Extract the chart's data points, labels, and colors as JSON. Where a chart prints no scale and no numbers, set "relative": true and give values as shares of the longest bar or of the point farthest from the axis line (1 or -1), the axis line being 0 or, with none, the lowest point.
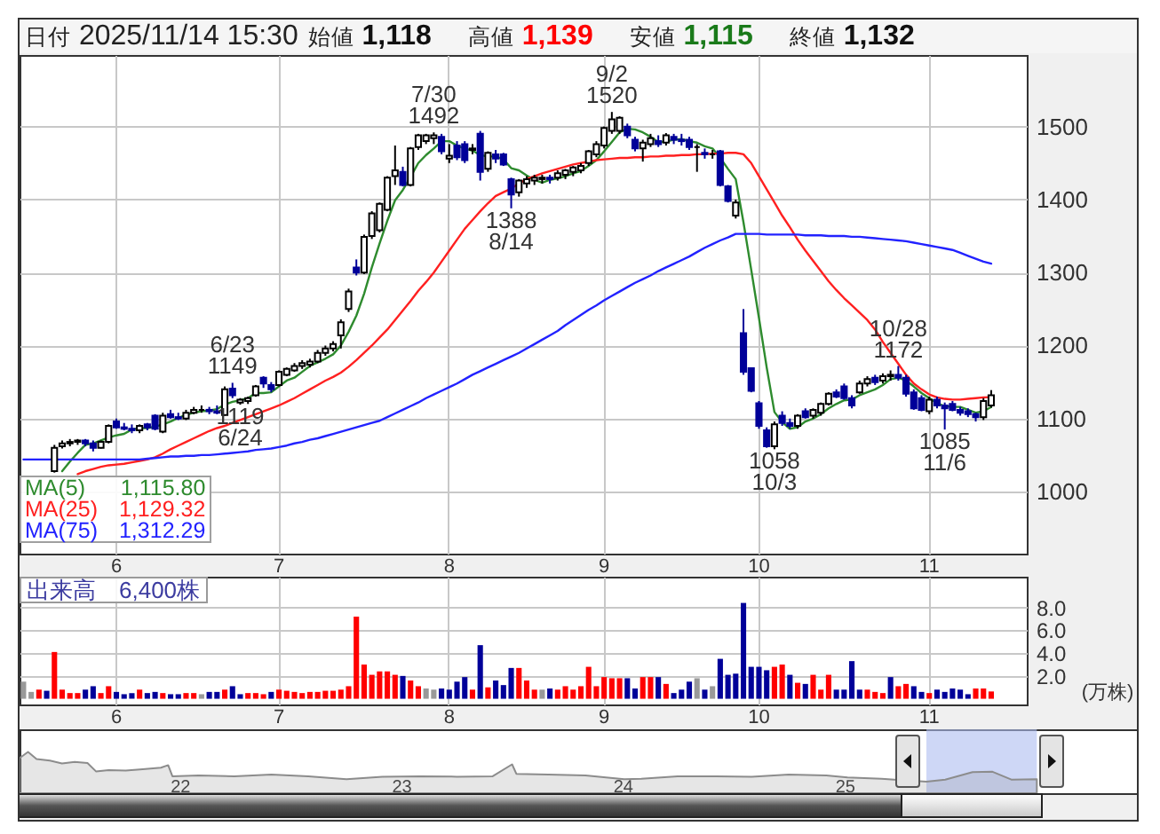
{
  "chart_data": [
    {
      "type": "candlestick",
      "title": "日付 2025/11/14 15:30 始値 1,118 高値 1,139 安値 1,115 終値 1,132",
      "categories": [
        null,
        null,
        null,
        null,
        null,
        null,
        null,
        null,
        null,
        null,
        null,
        null,
        "6",
        null,
        null,
        null,
        null,
        null,
        null,
        null,
        null,
        null,
        null,
        null,
        null,
        null,
        null,
        null,
        null,
        null,
        null,
        null,
        null,
        "7",
        null,
        null,
        null,
        null,
        null,
        null,
        null,
        null,
        null,
        null,
        null,
        null,
        null,
        null,
        null,
        null,
        null,
        null,
        null,
        null,
        null,
        "8",
        null,
        null,
        null,
        null,
        null,
        null,
        null,
        null,
        null,
        null,
        null,
        null,
        null,
        null,
        null,
        null,
        null,
        null,
        null,
        "9",
        null,
        null,
        null,
        null,
        null,
        null,
        null,
        null,
        null,
        null,
        null,
        null,
        null,
        null,
        null,
        null,
        null,
        null,
        null,
        "10",
        null,
        null,
        null,
        null,
        null,
        null,
        null,
        null,
        null,
        null,
        null,
        null,
        null,
        null,
        null,
        null,
        null,
        null,
        null,
        null,
        null,
        "11",
        null,
        null,
        null,
        null,
        null,
        null,
        null,
        null
      ],
      "ohlc": [
        null,
        null,
        null,
        null,
        [
          1028,
          1064,
          1026,
          1060
        ],
        [
          1062,
          1070,
          1059,
          1066
        ],
        [
          1066,
          1072,
          1062,
          1068
        ],
        [
          1068,
          1072,
          1064,
          1070
        ],
        [
          1070,
          1072,
          1062,
          1066
        ],
        [
          1066,
          1070,
          1055,
          1060
        ],
        [
          1060,
          1070,
          1059,
          1068
        ],
        [
          1068,
          1092,
          1066,
          1090
        ],
        [
          1096,
          1100,
          1086,
          1088
        ],
        [
          1088,
          1094,
          1084,
          1086
        ],
        [
          1086,
          1092,
          1080,
          1084
        ],
        [
          1084,
          1092,
          1080,
          1090
        ],
        [
          1092,
          1094,
          1084,
          1088
        ],
        [
          1104,
          1106,
          1084,
          1086
        ],
        [
          1082,
          1108,
          1080,
          1104
        ],
        [
          1106,
          1112,
          1100,
          1102
        ],
        [
          1102,
          1108,
          1098,
          1100
        ],
        [
          1100,
          1112,
          1098,
          1108
        ],
        [
          1108,
          1116,
          1106,
          1112
        ],
        [
          1112,
          1118,
          1108,
          1112
        ],
        [
          1112,
          1116,
          1106,
          1110
        ],
        [
          1110,
          1118,
          1106,
          1108
        ],
        [
          1105,
          1144,
          1104,
          1140
        ],
        [
          1141,
          1149,
          1128,
          1132
        ],
        [
          1122,
          1128,
          1119,
          1126
        ],
        [
          1124,
          1130,
          1120,
          1128
        ],
        [
          1132,
          1146,
          1130,
          1144
        ],
        [
          1156,
          1158,
          1142,
          1148
        ],
        [
          1146,
          1150,
          1136,
          1140
        ],
        [
          1146,
          1166,
          1144,
          1164
        ],
        [
          1160,
          1170,
          1158,
          1168
        ],
        [
          1166,
          1176,
          1164,
          1172
        ],
        [
          1172,
          1180,
          1168,
          1176
        ],
        [
          1174,
          1182,
          1170,
          1178
        ],
        [
          1178,
          1194,
          1176,
          1190
        ],
        [
          1190,
          1200,
          1186,
          1196
        ],
        [
          1196,
          1206,
          1192,
          1202
        ],
        [
          1214,
          1236,
          1196,
          1232
        ],
        [
          1250,
          1278,
          1246,
          1274
        ],
        [
          1307,
          1318,
          1296,
          1300
        ],
        [
          1300,
          1352,
          1298,
          1349
        ],
        [
          1350,
          1384,
          1346,
          1381
        ],
        [
          1358,
          1396,
          1355,
          1394
        ],
        [
          1386,
          1432,
          1384,
          1430
        ],
        [
          1432,
          1474,
          1420,
          1440
        ],
        [
          1438,
          1445,
          1418,
          1420
        ],
        [
          1420,
          1472,
          1418,
          1470
        ],
        [
          1472,
          1490,
          1468,
          1488
        ],
        [
          1480,
          1490,
          1476,
          1488
        ],
        [
          1484,
          1492,
          1476,
          1488
        ],
        [
          1486,
          1490,
          1462,
          1466
        ],
        [
          1456,
          1476,
          1450,
          1460
        ],
        [
          1474,
          1480,
          1454,
          1458
        ],
        [
          1476,
          1480,
          1450,
          1454
        ],
        [
          1468,
          1476,
          1462,
          1470
        ],
        [
          1490,
          1494,
          1426,
          1438
        ],
        [
          1442,
          1466,
          1438,
          1464
        ],
        [
          1462,
          1468,
          1450,
          1456
        ],
        [
          1462,
          1464,
          1446,
          1448
        ],
        [
          1428,
          1430,
          1388,
          1407
        ],
        [
          1410,
          1428,
          1404,
          1426
        ],
        [
          1422,
          1432,
          1416,
          1428
        ],
        [
          1426,
          1434,
          1420,
          1430
        ],
        [
          1428,
          1434,
          1422,
          1430
        ],
        [
          1430,
          1434,
          1422,
          1428
        ],
        [
          1430,
          1440,
          1426,
          1436
        ],
        [
          1434,
          1442,
          1428,
          1440
        ],
        [
          1438,
          1446,
          1432,
          1444
        ],
        [
          1440,
          1450,
          1436,
          1446
        ],
        [
          1450,
          1468,
          1446,
          1466
        ],
        [
          1462,
          1480,
          1458,
          1476
        ],
        [
          1474,
          1500,
          1470,
          1498
        ],
        [
          1494,
          1520,
          1490,
          1510
        ],
        [
          1494,
          1514,
          1490,
          1512
        ],
        [
          1500,
          1504,
          1484,
          1488
        ],
        [
          1482,
          1486,
          1466,
          1470
        ],
        [
          1470,
          1482,
          1452,
          1478
        ],
        [
          1476,
          1490,
          1472,
          1484
        ],
        [
          1480,
          1488,
          1472,
          1476
        ],
        [
          1478,
          1491,
          1474,
          1488
        ],
        [
          1486,
          1490,
          1476,
          1482
        ],
        [
          1482,
          1490,
          1474,
          1480
        ],
        [
          1482,
          1486,
          1468,
          1472
        ],
        [
          1472,
          1476,
          1438,
          1472
        ],
        [
          1464,
          1470,
          1456,
          1462
        ],
        [
          1462,
          1468,
          1456,
          1462
        ],
        [
          1466,
          1468,
          1418,
          1420
        ],
        [
          1418,
          1420,
          1396,
          1398
        ],
        [
          1378,
          1400,
          1374,
          1396
        ],
        [
          1217,
          1250,
          1160,
          1164
        ],
        [
          1169,
          1170,
          1136,
          1138
        ],
        [
          1121,
          1124,
          1086,
          1090
        ],
        [
          1084,
          1088,
          1060,
          1062
        ],
        [
          1062,
          1096,
          1058,
          1092
        ],
        [
          1104,
          1110,
          1090,
          1094
        ],
        [
          1094,
          1100,
          1086,
          1090
        ],
        [
          1090,
          1106,
          1086,
          1104
        ],
        [
          1110,
          1114,
          1100,
          1102
        ],
        [
          1104,
          1114,
          1100,
          1112
        ],
        [
          1108,
          1122,
          1104,
          1120
        ],
        [
          1120,
          1136,
          1118,
          1134
        ],
        [
          1136,
          1140,
          1128,
          1130
        ],
        [
          1144,
          1148,
          1126,
          1128
        ],
        [
          1128,
          1132,
          1114,
          1118
        ],
        [
          1136,
          1152,
          1134,
          1148
        ],
        [
          1148,
          1158,
          1144,
          1154
        ],
        [
          1156,
          1160,
          1146,
          1150
        ],
        [
          1152,
          1162,
          1148,
          1158
        ],
        [
          1158,
          1166,
          1152,
          1160
        ],
        [
          1160,
          1172,
          1152,
          1156
        ],
        [
          1156,
          1160,
          1130,
          1134
        ],
        [
          1136,
          1140,
          1112,
          1114
        ],
        [
          1128,
          1132,
          1110,
          1112
        ],
        [
          1110,
          1130,
          1106,
          1126
        ],
        [
          1126,
          1130,
          1114,
          1118
        ],
        [
          1118,
          1122,
          1085,
          1114
        ],
        [
          1120,
          1124,
          1110,
          1112
        ],
        [
          1112,
          1116,
          1104,
          1108
        ],
        [
          1110,
          1114,
          1102,
          1106
        ],
        [
          1106,
          1108,
          1096,
          1102
        ],
        [
          1102,
          1128,
          1098,
          1124
        ],
        [
          1118,
          1139,
          1115,
          1132
        ]
      ],
      "series": [
        {
          "name": "MA(5)",
          "type": "line",
          "color": "#2e8b2e",
          "values": [
            null,
            null,
            null,
            null,
            null,
            1028,
            1041,
            1053,
            1064,
            1066,
            1070,
            1074,
            1077,
            1079,
            1085,
            1087,
            1087,
            1089,
            1092,
            1096,
            1101,
            1105,
            1108,
            1110,
            1111,
            1113,
            1119,
            1123,
            1125,
            1128,
            1135,
            1135,
            1136,
            1144,
            1152,
            1156,
            1164,
            1172,
            1177,
            1182,
            1188,
            1200,
            1219,
            1241,
            1271,
            1307,
            1340,
            1371,
            1399,
            1413,
            1431,
            1450,
            1461,
            1470,
            1480,
            1480,
            1474,
            1470,
            1467,
            1461,
            1459,
            1459,
            1455,
            1443,
            1440,
            1433,
            1427,
            1423,
            1427,
            1429,
            1432,
            1436,
            1439,
            1446,
            1454,
            1466,
            1479,
            1492,
            1497,
            1496,
            1492,
            1486,
            1479,
            1479,
            1482,
            1483,
            1480,
            1478,
            1473,
            1470,
            1457,
            1442,
            1428,
            1369,
            1304,
            1238,
            1170,
            1109,
            1095,
            1086,
            1088,
            1096,
            1100,
            1106,
            1114,
            1120,
            1125,
            1126,
            1132,
            1136,
            1140,
            1146,
            1154,
            1156,
            1152,
            1144,
            1135,
            1128,
            1121,
            1117,
            1116,
            1116,
            1112,
            1108,
            1110,
            1115.8
          ]
        },
        {
          "name": "MA(25)",
          "type": "line",
          "color": "#ff2020",
          "values": [
            null,
            null,
            null,
            null,
            null,
            null,
            null,
            1024,
            1028,
            1031,
            1034,
            1036,
            1037,
            1038,
            1040,
            1042,
            1044,
            1047,
            1052,
            1058,
            1063,
            1068,
            1073,
            1078,
            1083,
            1087,
            1090,
            1094,
            1098,
            1102,
            1106,
            1110,
            1114,
            1118,
            1123,
            1128,
            1134,
            1140,
            1146,
            1152,
            1157,
            1163,
            1171,
            1180,
            1190,
            1200,
            1211,
            1222,
            1235,
            1248,
            1261,
            1275,
            1287,
            1300,
            1315,
            1330,
            1345,
            1360,
            1372,
            1384,
            1395,
            1405,
            1410,
            1415,
            1422,
            1428,
            1432,
            1436,
            1439,
            1442,
            1445,
            1448,
            1450,
            1452,
            1454,
            1455,
            1456,
            1457,
            1457,
            1458,
            1458,
            1459,
            1459,
            1460,
            1460,
            1461,
            1461,
            1462,
            1462,
            1463,
            1463,
            1464,
            1464,
            1462,
            1450,
            1432,
            1414,
            1396,
            1378,
            1362,
            1345,
            1330,
            1316,
            1302,
            1288,
            1276,
            1265,
            1255,
            1245,
            1235,
            1222,
            1205,
            1190,
            1175,
            1160,
            1148,
            1140,
            1133,
            1129,
            1127,
            1126,
            1126,
            1127,
            1128,
            1129,
            1129.32
          ]
        },
        {
          "name": "MA(75)",
          "type": "line",
          "color": "#2222ff",
          "values": [
            1044,
            1044,
            1044,
            1044,
            1044,
            1044,
            1044,
            1044,
            1044,
            1044,
            1044,
            1044,
            1044,
            1044,
            1044,
            1044,
            1045,
            1046,
            1047,
            1048,
            1048,
            1049,
            1049,
            1050,
            1050,
            1051,
            1052,
            1053,
            1054,
            1055,
            1057,
            1058,
            1059,
            1061,
            1063,
            1066,
            1068,
            1071,
            1073,
            1076,
            1079,
            1082,
            1085,
            1088,
            1091,
            1094,
            1097,
            1102,
            1107,
            1112,
            1117,
            1122,
            1128,
            1133,
            1138,
            1143,
            1148,
            1154,
            1160,
            1165,
            1170,
            1175,
            1180,
            1185,
            1190,
            1196,
            1202,
            1208,
            1214,
            1220,
            1228,
            1235,
            1242,
            1249,
            1255,
            1262,
            1268,
            1274,
            1280,
            1286,
            1291,
            1296,
            1302,
            1307,
            1312,
            1317,
            1322,
            1328,
            1334,
            1339,
            1344,
            1348,
            1353,
            1353,
            1353,
            1353,
            1352,
            1352,
            1352,
            1352,
            1352,
            1351,
            1351,
            1351,
            1350,
            1350,
            1350,
            1349,
            1349,
            1348,
            1347,
            1346,
            1345,
            1344,
            1343,
            1341,
            1339,
            1337,
            1335,
            1333,
            1331,
            1327,
            1323,
            1319,
            1315,
            1312.29
          ]
        }
      ],
      "ylim": [
        915,
        1598
      ],
      "yticks": [
        1000,
        1100,
        1200,
        1300,
        1400,
        1500
      ],
      "grid": true,
      "legend": "bottom left",
      "annotations": [
        {
          "text": "6/23\n1149",
          "y": 1149
        },
        {
          "text": "1119\n6/24",
          "y": 1119
        },
        {
          "text": "7/30\n1492",
          "y": 1492
        },
        {
          "text": "1388\n8/14",
          "y": 1388
        },
        {
          "text": "9/2\n1520",
          "y": 1520
        },
        {
          "text": "1058\n10/3",
          "y": 1058
        },
        {
          "text": "10/28\n1172",
          "y": 1172
        },
        {
          "text": "1085\n11/6",
          "y": 1085
        },
        "1,115.80",
        "1,129.32",
        "1,312.29"
      ]
    },
    {
      "type": "bar",
      "title": "出来高　6,400株",
      "ylabel": "(万株)",
      "categories": [
        null,
        null,
        null,
        null,
        null,
        null,
        null,
        null,
        null,
        null,
        null,
        null,
        "6",
        null,
        null,
        null,
        null,
        null,
        null,
        null,
        null,
        null,
        null,
        null,
        null,
        null,
        null,
        null,
        null,
        null,
        null,
        null,
        null,
        "7",
        null,
        null,
        null,
        null,
        null,
        null,
        null,
        null,
        null,
        null,
        null,
        null,
        null,
        null,
        null,
        null,
        null,
        null,
        null,
        null,
        null,
        "8",
        null,
        null,
        null,
        null,
        null,
        null,
        null,
        null,
        null,
        null,
        null,
        null,
        null,
        null,
        null,
        null,
        null,
        null,
        null,
        "9",
        null,
        null,
        null,
        null,
        null,
        null,
        null,
        null,
        null,
        null,
        null,
        null,
        null,
        null,
        null,
        null,
        null,
        null,
        null,
        "10",
        null,
        null,
        null,
        null,
        null,
        null,
        null,
        null,
        null,
        null,
        null,
        null,
        null,
        null,
        null,
        null,
        null,
        null,
        null,
        null,
        null,
        "11",
        null,
        null,
        null,
        null,
        null,
        null,
        null,
        null
      ],
      "values": [
        1.5,
        0.6,
        0.8,
        0.7,
        4.1,
        0.8,
        0.5,
        0.5,
        0.8,
        1.1,
        0.5,
        1.1,
        0.6,
        0.4,
        0.5,
        0.8,
        0.5,
        0.6,
        0.5,
        0.4,
        0.4,
        0.5,
        0.5,
        0.4,
        0.6,
        0.6,
        0.8,
        1.1,
        0.4,
        0.5,
        0.5,
        0.4,
        0.6,
        0.8,
        0.7,
        0.6,
        0.5,
        0.6,
        0.6,
        0.7,
        0.7,
        0.8,
        1.1,
        7.2,
        3.0,
        2.1,
        2.4,
        2.4,
        2.1,
        2.0,
        1.6,
        1.1,
        0.9,
        0.8,
        0.9,
        0.8,
        1.5,
        1.9,
        0.8,
        4.7,
        1.0,
        1.6,
        1.2,
        2.7,
        2.7,
        1.6,
        0.8,
        0.8,
        0.9,
        0.8,
        1.1,
        0.8,
        1.1,
        2.8,
        1.1,
        1.9,
        1.8,
        1.8,
        1.8,
        0.9,
        1.9,
        1.9,
        1.9,
        1.3,
        0.5,
        0.8,
        1.5,
        1.8,
        0.8,
        1.1,
        3.5,
        2.1,
        2.2,
        8.4,
        2.8,
        2.8,
        2.5,
        2.8,
        3.0,
        2.1,
        1.4,
        1.3,
        2.1,
        0.8,
        2.1,
        0.8,
        0.8,
        3.3,
        0.8,
        0.8,
        0.6,
        0.5,
        1.9,
        1.1,
        1.3,
        1.1,
        0.6,
        0.5,
        0.8,
        0.6,
        0.9,
        0.8,
        0.4,
        0.9,
        0.9,
        0.64
      ],
      "colors": [
        "#999999",
        "#999999",
        "#ff0000",
        "#000099",
        "#ff0000",
        "#ff0000",
        "#ff0000",
        "#ff0000",
        "#000099",
        "#000099",
        "#ff0000",
        "#ff0000",
        "#000099",
        "#000099",
        "#000099",
        "#ff0000",
        "#000099",
        "#000099",
        "#ff0000",
        "#000099",
        "#000099",
        "#ff0000",
        "#ff0000",
        "#999999",
        "#000099",
        "#000099",
        "#ff0000",
        "#000099",
        "#000099",
        "#ff0000",
        "#ff0000",
        "#ff0000",
        "#000099",
        "#ff0000",
        "#ff0000",
        "#ff0000",
        "#ff0000",
        "#ff0000",
        "#ff0000",
        "#ff0000",
        "#ff0000",
        "#ff0000",
        "#ff0000",
        "#ff0000",
        "#ff0000",
        "#ff0000",
        "#ff0000",
        "#ff0000",
        "#ff0000",
        "#000099",
        "#ff0000",
        "#ff0000",
        "#999999",
        "#999999",
        "#000099",
        "#000099",
        "#000099",
        "#000099",
        "#ff0000",
        "#000099",
        "#ff0000",
        "#000099",
        "#000099",
        "#000099",
        "#ff0000",
        "#ff0000",
        "#ff0000",
        "#999999",
        "#000099",
        "#ff0000",
        "#ff0000",
        "#ff0000",
        "#ff0000",
        "#ff0000",
        "#ff0000",
        "#ff0000",
        "#ff0000",
        "#ff0000",
        "#000099",
        "#000099",
        "#ff0000",
        "#ff0000",
        "#000099",
        "#ff0000",
        "#000099",
        "#000099",
        "#000099",
        "#999999",
        "#000099",
        "#999999",
        "#000099",
        "#000099",
        "#000099",
        "#000099",
        "#000099",
        "#000099",
        "#000099",
        "#ff0000",
        "#ff0000",
        "#000099",
        "#ff0000",
        "#000099",
        "#ff0000",
        "#ff0000",
        "#ff0000",
        "#000099",
        "#000099",
        "#000099",
        "#000099",
        "#ff0000",
        "#ff0000",
        "#ff0000",
        "#000099",
        "#ff0000",
        "#ff0000",
        "#000099",
        "#000099",
        "#ff0000",
        "#000099",
        "#000099",
        "#000099",
        "#000099",
        "#000099",
        "#ff0000",
        "#ff0000",
        "#ff0000"
      ],
      "ylim": [
        -0.5,
        10.7
      ],
      "yticks": [
        {
          "value": 2,
          "label": "2.0"
        },
        {
          "value": 4,
          "label": "4.0"
        },
        {
          "value": 6,
          "label": "6.0"
        },
        {
          "value": 8,
          "label": "8.0"
        }
      ],
      "grid": true
    },
    {
      "type": "area",
      "color": "#8c8c8c",
      "relative": true,
      "x": [
        "2021-04-12",
        "2021-04-26",
        "2021-05-10",
        "2021-06-01",
        "2021-06-21",
        "2021-07-12",
        "2021-08-02",
        "2021-08-16",
        "2021-09-06",
        "2021-10-04",
        "2021-11-01",
        "2021-12-01",
        "2021-12-13",
        "2021-12-20",
        "2022-02-01",
        "2022-04-01",
        "2022-06-01",
        "2022-08-01",
        "2022-10-03",
        "2022-12-01",
        "2023-02-01",
        "2023-04-03",
        "2023-06-01",
        "2023-07-03",
        "2023-07-10",
        "2023-09-01",
        "2023-11-01",
        "2024-01-04",
        "2024-02-01",
        "2024-04-01",
        "2024-06-03",
        "2024-08-01",
        "2024-10-01",
        "2024-12-02",
        "2025-01-06",
        "2025-03-03",
        "2025-05-16",
        "2025-06-16",
        "2025-07-31",
        "2025-09-02",
        "2025-10-03",
        "2025-11-14"
      ],
      "values": [
        0.85,
        1,
        0.83,
        0.79,
        0.72,
        0.76,
        0.73,
        0.53,
        0.56,
        0.55,
        0.58,
        0.62,
        0.68,
        0.41,
        0.43,
        0.41,
        0.45,
        0.41,
        0.34,
        0.4,
        0.41,
        0.4,
        0.41,
        0.7,
        0.47,
        0.45,
        0.43,
        0.34,
        0.35,
        0.41,
        0.41,
        0.4,
        0.45,
        0.43,
        0.38,
        0.35,
        0.28,
        0.33,
        0.51,
        0.52,
        0.33,
        0.34
      ],
      "xlim": [
        "2021-04-12",
        "2026-04-28"
      ],
      "xticks": [
        {
          "value": "2022-01-01",
          "label": "22"
        },
        {
          "value": "2023-01-01",
          "label": "23"
        },
        {
          "value": "2024-01-01",
          "label": "24"
        },
        {
          "value": "2025-01-01",
          "label": "25"
        }
      ],
      "tick_labels": "x",
      "bands": [
        {
          "axis": "x",
          "from": "2025-05-16",
          "to": "2025-11-14",
          "color": "#aebdf0"
        }
      ]
    }
  ]
}
